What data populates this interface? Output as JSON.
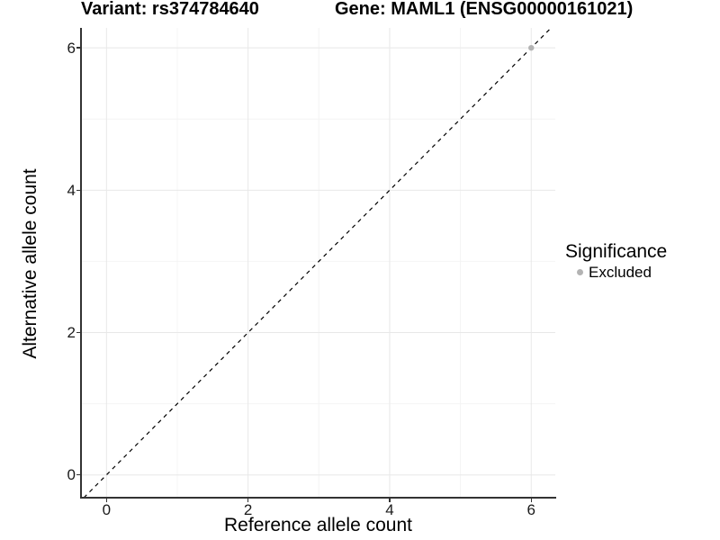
{
  "chart_data": {
    "type": "scatter",
    "title_left": "Variant: rs374784640",
    "title_right": "Gene: MAML1 (ENSG00000161021)",
    "xlabel": "Reference allele count",
    "ylabel": "Alternative allele count",
    "x_ticks": [
      0,
      2,
      4,
      6
    ],
    "y_ticks": [
      0,
      2,
      4,
      6
    ],
    "x_minor_ticks": [
      1,
      3,
      5
    ],
    "y_minor_ticks": [
      1,
      3,
      5
    ],
    "xlim": [
      -0.36,
      6.34
    ],
    "ylim": [
      -0.32,
      6.28
    ],
    "grid": true,
    "identity_line": {
      "style": "dashed",
      "from": -0.32,
      "to": 6.28,
      "color": "#000000"
    },
    "series": [
      {
        "name": "Excluded",
        "color": "#b3b3b3",
        "points": [
          [
            6,
            6
          ]
        ]
      }
    ],
    "legend": {
      "title": "Significance",
      "position": "right",
      "items": [
        {
          "label": "Excluded",
          "color": "#b3b3b3"
        }
      ]
    }
  },
  "colors": {
    "background": "#ffffff",
    "grid_major": "#e8e8e8",
    "grid_minor": "#f4f4f4",
    "axis": "#333333",
    "point": "#b3b3b3",
    "text": "#000000"
  }
}
